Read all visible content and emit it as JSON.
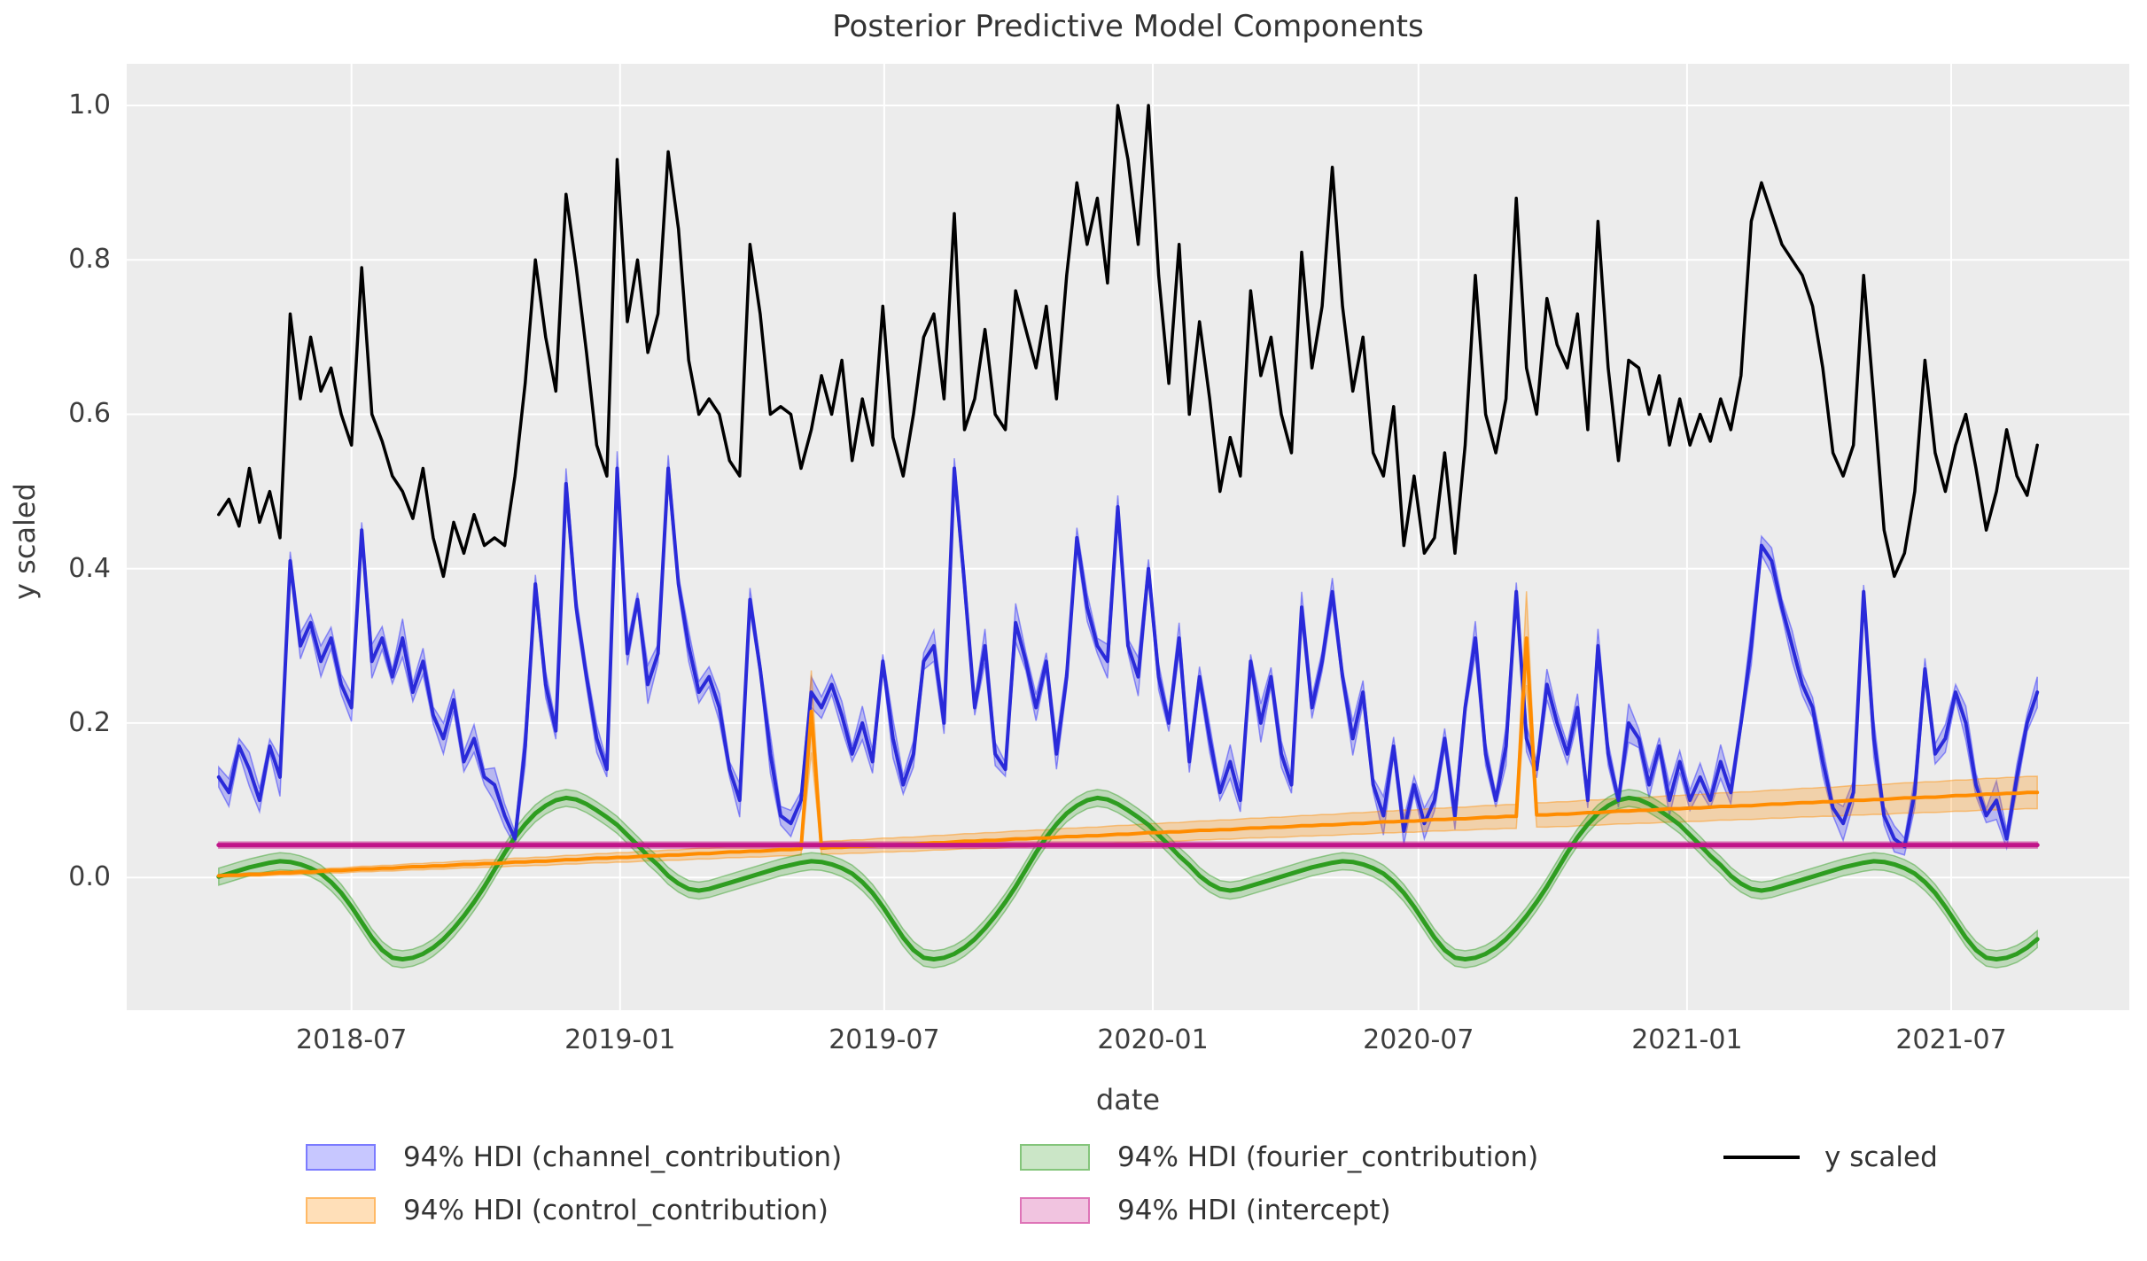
{
  "title": "Posterior Predictive Model Components",
  "colors": {
    "figure_background": "#ffffff",
    "plot_background": "#ececec",
    "grid": "#ffffff",
    "text": "#3d3d3d",
    "title_text": "#333333"
  },
  "x_axis": {
    "label": "date",
    "ticks": [
      {
        "label": "2018-07",
        "day": 154
      },
      {
        "label": "2019-01",
        "day": 338
      },
      {
        "label": "2019-07",
        "day": 519
      },
      {
        "label": "2020-01",
        "day": 703
      },
      {
        "label": "2020-07",
        "day": 885
      },
      {
        "label": "2021-01",
        "day": 1069
      },
      {
        "label": "2021-07",
        "day": 1250
      }
    ],
    "domain_start_date": "2018-01-28",
    "domain_days": 1372
  },
  "y_axis": {
    "label": "y scaled",
    "ticks": [
      {
        "label": "0.0",
        "value": 0.0
      },
      {
        "label": "0.2",
        "value": 0.2
      },
      {
        "label": "0.4",
        "value": 0.4
      },
      {
        "label": "0.6",
        "value": 0.6
      },
      {
        "label": "0.8",
        "value": 0.8
      },
      {
        "label": "1.0",
        "value": 1.0
      }
    ],
    "min": -0.172,
    "max": 1.054
  },
  "legend": {
    "row1": [
      "94% HDI (channel_contribution)",
      "94% HDI (fourier_contribution)",
      "y scaled"
    ],
    "row2": [
      "94% HDI (control_contribution)",
      "94% HDI (intercept)"
    ]
  },
  "chart_data": {
    "type": "line",
    "title": "Posterior Predictive Model Components",
    "xlabel": "date",
    "ylabel": "y scaled",
    "x_start_date": "2018-04-01",
    "x_frequency_days": 7,
    "n_points": 179,
    "grid": true,
    "legend_position": "below",
    "series": [
      {
        "name": "channel_contribution",
        "legend": "94% HDI (channel_contribution)",
        "line_color": "#2a2ad9",
        "band_color": "rgba(0,0,255,0.22)",
        "band_edge_color": "rgba(0,0,255,0.38)",
        "line_width": 4,
        "band_halfwidth_pattern": [
          0.013,
          0.018,
          0.01,
          0.022,
          0.015,
          0.009,
          0.025,
          0.012,
          0.017,
          0.011,
          0.02,
          0.014
        ],
        "values": [
          0.13,
          0.11,
          0.17,
          0.14,
          0.1,
          0.17,
          0.13,
          0.41,
          0.3,
          0.33,
          0.28,
          0.31,
          0.25,
          0.22,
          0.45,
          0.28,
          0.31,
          0.26,
          0.31,
          0.24,
          0.28,
          0.21,
          0.18,
          0.23,
          0.15,
          0.18,
          0.13,
          0.12,
          0.08,
          0.05,
          0.17,
          0.38,
          0.25,
          0.19,
          0.51,
          0.35,
          0.26,
          0.18,
          0.14,
          0.53,
          0.29,
          0.36,
          0.25,
          0.29,
          0.53,
          0.38,
          0.3,
          0.24,
          0.26,
          0.22,
          0.14,
          0.1,
          0.36,
          0.27,
          0.16,
          0.08,
          0.07,
          0.1,
          0.24,
          0.22,
          0.25,
          0.21,
          0.16,
          0.2,
          0.15,
          0.28,
          0.18,
          0.12,
          0.16,
          0.28,
          0.3,
          0.2,
          0.53,
          0.38,
          0.22,
          0.3,
          0.16,
          0.14,
          0.33,
          0.28,
          0.22,
          0.28,
          0.16,
          0.26,
          0.44,
          0.35,
          0.3,
          0.28,
          0.48,
          0.3,
          0.26,
          0.4,
          0.26,
          0.2,
          0.31,
          0.15,
          0.26,
          0.18,
          0.11,
          0.15,
          0.1,
          0.28,
          0.2,
          0.26,
          0.16,
          0.12,
          0.35,
          0.22,
          0.28,
          0.37,
          0.26,
          0.18,
          0.24,
          0.12,
          0.08,
          0.17,
          0.06,
          0.12,
          0.07,
          0.1,
          0.18,
          0.08,
          0.22,
          0.31,
          0.16,
          0.1,
          0.17,
          0.37,
          0.18,
          0.14,
          0.25,
          0.2,
          0.16,
          0.22,
          0.1,
          0.3,
          0.16,
          0.1,
          0.2,
          0.18,
          0.12,
          0.17,
          0.1,
          0.15,
          0.1,
          0.13,
          0.1,
          0.15,
          0.11,
          0.2,
          0.3,
          0.43,
          0.41,
          0.35,
          0.3,
          0.25,
          0.22,
          0.15,
          0.09,
          0.07,
          0.11,
          0.37,
          0.18,
          0.08,
          0.05,
          0.04,
          0.11,
          0.27,
          0.16,
          0.18,
          0.24,
          0.2,
          0.12,
          0.08,
          0.1,
          0.05,
          0.13,
          0.2,
          0.24
        ]
      },
      {
        "name": "control_contribution",
        "legend": "94% HDI (control_contribution)",
        "line_color": "#ff8c00",
        "band_color": "rgba(255,140,0,0.28)",
        "band_edge_color": "rgba(255,140,0,0.45)",
        "line_width": 4,
        "band_halfwidth_ramp": {
          "start": 0.002,
          "end": 0.021,
          "spike_indices": [
            58,
            128
          ],
          "spike_extra": 0.045
        },
        "values": [
          0.002,
          0.003,
          0.003,
          0.004,
          0.004,
          0.005,
          0.006,
          0.006,
          0.007,
          0.007,
          0.008,
          0.009,
          0.009,
          0.01,
          0.011,
          0.011,
          0.012,
          0.012,
          0.013,
          0.014,
          0.014,
          0.015,
          0.015,
          0.016,
          0.017,
          0.017,
          0.018,
          0.018,
          0.019,
          0.02,
          0.02,
          0.021,
          0.021,
          0.022,
          0.023,
          0.023,
          0.024,
          0.025,
          0.025,
          0.026,
          0.026,
          0.027,
          0.028,
          0.028,
          0.029,
          0.029,
          0.03,
          0.031,
          0.031,
          0.032,
          0.033,
          0.033,
          0.034,
          0.034,
          0.035,
          0.036,
          0.036,
          0.037,
          0.215,
          0.038,
          0.039,
          0.039,
          0.04,
          0.04,
          0.041,
          0.042,
          0.042,
          0.043,
          0.043,
          0.044,
          0.045,
          0.045,
          0.046,
          0.047,
          0.047,
          0.048,
          0.048,
          0.049,
          0.05,
          0.05,
          0.051,
          0.051,
          0.052,
          0.053,
          0.053,
          0.054,
          0.054,
          0.055,
          0.056,
          0.056,
          0.057,
          0.058,
          0.058,
          0.059,
          0.059,
          0.06,
          0.061,
          0.061,
          0.062,
          0.062,
          0.063,
          0.064,
          0.064,
          0.065,
          0.065,
          0.066,
          0.067,
          0.067,
          0.068,
          0.068,
          0.069,
          0.07,
          0.07,
          0.071,
          0.072,
          0.072,
          0.073,
          0.073,
          0.074,
          0.075,
          0.075,
          0.076,
          0.076,
          0.077,
          0.078,
          0.078,
          0.079,
          0.079,
          0.31,
          0.081,
          0.081,
          0.082,
          0.082,
          0.083,
          0.084,
          0.084,
          0.085,
          0.086,
          0.086,
          0.087,
          0.087,
          0.088,
          0.089,
          0.089,
          0.09,
          0.09,
          0.091,
          0.092,
          0.092,
          0.093,
          0.093,
          0.094,
          0.095,
          0.095,
          0.096,
          0.097,
          0.097,
          0.098,
          0.098,
          0.099,
          0.1,
          0.1,
          0.101,
          0.101,
          0.102,
          0.103,
          0.103,
          0.104,
          0.104,
          0.105,
          0.106,
          0.106,
          0.107,
          0.108,
          0.108,
          0.109,
          0.109,
          0.11,
          0.11
        ]
      },
      {
        "name": "fourier_contribution",
        "legend": "94% HDI (fourier_contribution)",
        "line_color": "#2e9d20",
        "band_color": "rgba(46,157,32,0.25)",
        "band_edge_color": "rgba(46,157,32,0.45)",
        "line_width": 5,
        "band_halfwidth_const": 0.011,
        "values": [
          0.001,
          0.005,
          0.009,
          0.013,
          0.016,
          0.019,
          0.021,
          0.02,
          0.017,
          0.012,
          0.005,
          -0.006,
          -0.02,
          -0.038,
          -0.058,
          -0.078,
          -0.094,
          -0.104,
          -0.106,
          -0.104,
          -0.099,
          -0.091,
          -0.08,
          -0.066,
          -0.05,
          -0.032,
          -0.012,
          0.01,
          0.032,
          0.052,
          0.069,
          0.083,
          0.093,
          0.1,
          0.103,
          0.101,
          0.095,
          0.087,
          0.078,
          0.068,
          0.055,
          0.042,
          0.028,
          0.016,
          0.002,
          -0.008,
          -0.015,
          -0.017,
          -0.015,
          -0.011,
          -0.007,
          -0.003,
          0.001,
          0.005,
          0.009,
          0.013,
          0.016,
          0.019,
          0.021,
          0.02,
          0.017,
          0.012,
          0.005,
          -0.006,
          -0.02,
          -0.038,
          -0.058,
          -0.078,
          -0.094,
          -0.104,
          -0.106,
          -0.104,
          -0.099,
          -0.091,
          -0.08,
          -0.066,
          -0.05,
          -0.032,
          -0.012,
          0.01,
          0.032,
          0.052,
          0.069,
          0.083,
          0.093,
          0.1,
          0.103,
          0.101,
          0.095,
          0.087,
          0.078,
          0.068,
          0.055,
          0.042,
          0.028,
          0.016,
          0.002,
          -0.008,
          -0.015,
          -0.017,
          -0.015,
          -0.011,
          -0.007,
          -0.003,
          0.001,
          0.005,
          0.009,
          0.013,
          0.016,
          0.019,
          0.021,
          0.02,
          0.017,
          0.012,
          0.005,
          -0.006,
          -0.02,
          -0.038,
          -0.058,
          -0.078,
          -0.094,
          -0.104,
          -0.106,
          -0.104,
          -0.099,
          -0.091,
          -0.08,
          -0.066,
          -0.05,
          -0.032,
          -0.012,
          0.01,
          0.032,
          0.052,
          0.069,
          0.083,
          0.093,
          0.1,
          0.103,
          0.101,
          0.095,
          0.087,
          0.078,
          0.068,
          0.055,
          0.042,
          0.028,
          0.016,
          0.002,
          -0.008,
          -0.015,
          -0.017,
          -0.015,
          -0.011,
          -0.007,
          -0.003,
          0.001,
          0.005,
          0.009,
          0.013,
          0.016,
          0.019,
          0.021,
          0.02,
          0.017,
          0.012,
          0.005,
          -0.006,
          -0.02,
          -0.038,
          -0.058,
          -0.078,
          -0.094,
          -0.104,
          -0.106,
          -0.104,
          -0.099,
          -0.091,
          -0.08
        ]
      },
      {
        "name": "intercept",
        "legend": "94% HDI (intercept)",
        "line_color": "#c01589",
        "band_color": "rgba(199,21,133,0.25)",
        "band_edge_color": "rgba(199,21,133,0.45)",
        "line_width": 5,
        "constant": 0.042,
        "band_halfwidth_const": 0.004
      },
      {
        "name": "y scaled",
        "legend": "y scaled",
        "line_color": "#000000",
        "line_width": 3.5,
        "values": [
          0.47,
          0.49,
          0.455,
          0.53,
          0.46,
          0.5,
          0.44,
          0.73,
          0.62,
          0.7,
          0.63,
          0.66,
          0.6,
          0.56,
          0.79,
          0.6,
          0.565,
          0.52,
          0.5,
          0.465,
          0.53,
          0.44,
          0.39,
          0.46,
          0.42,
          0.47,
          0.43,
          0.44,
          0.43,
          0.52,
          0.64,
          0.8,
          0.7,
          0.63,
          0.885,
          0.79,
          0.68,
          0.56,
          0.52,
          0.93,
          0.72,
          0.8,
          0.68,
          0.73,
          0.94,
          0.84,
          0.67,
          0.6,
          0.62,
          0.6,
          0.54,
          0.52,
          0.82,
          0.73,
          0.6,
          0.61,
          0.6,
          0.53,
          0.58,
          0.65,
          0.6,
          0.67,
          0.54,
          0.62,
          0.56,
          0.74,
          0.57,
          0.52,
          0.6,
          0.7,
          0.73,
          0.62,
          0.86,
          0.58,
          0.62,
          0.71,
          0.6,
          0.58,
          0.76,
          0.71,
          0.66,
          0.74,
          0.62,
          0.78,
          0.9,
          0.82,
          0.88,
          0.77,
          1.0,
          0.93,
          0.82,
          1.0,
          0.78,
          0.64,
          0.82,
          0.6,
          0.72,
          0.62,
          0.5,
          0.57,
          0.52,
          0.76,
          0.65,
          0.7,
          0.6,
          0.55,
          0.81,
          0.66,
          0.74,
          0.92,
          0.74,
          0.63,
          0.7,
          0.55,
          0.52,
          0.61,
          0.43,
          0.52,
          0.42,
          0.44,
          0.55,
          0.42,
          0.56,
          0.78,
          0.6,
          0.55,
          0.62,
          0.88,
          0.66,
          0.6,
          0.75,
          0.69,
          0.66,
          0.73,
          0.58,
          0.85,
          0.66,
          0.54,
          0.67,
          0.66,
          0.6,
          0.65,
          0.56,
          0.62,
          0.56,
          0.6,
          0.565,
          0.62,
          0.58,
          0.65,
          0.85,
          0.9,
          0.86,
          0.82,
          0.8,
          0.78,
          0.74,
          0.66,
          0.55,
          0.52,
          0.56,
          0.78,
          0.62,
          0.45,
          0.39,
          0.42,
          0.5,
          0.67,
          0.55,
          0.5,
          0.56,
          0.6,
          0.53,
          0.45,
          0.5,
          0.58,
          0.52,
          0.495,
          0.56
        ]
      }
    ]
  }
}
